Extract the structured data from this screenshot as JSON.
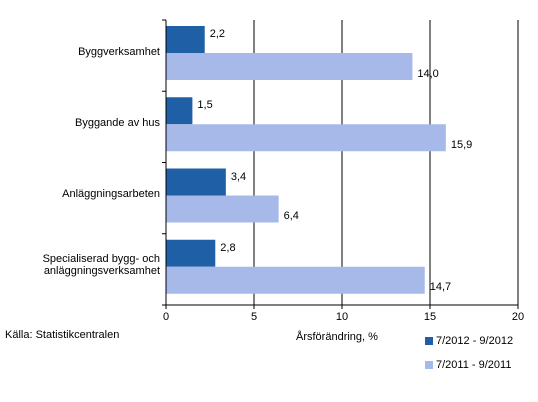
{
  "chart_data": {
    "type": "bar",
    "orientation": "horizontal",
    "categories": [
      "Byggverksamhet",
      "Byggande av hus",
      "Anläggningsarbeten",
      "Specialiserad bygg- och\nanläggningsverksamhet"
    ],
    "series": [
      {
        "name": "7/2012 - 9/2012",
        "values": [
          2.2,
          1.5,
          3.4,
          2.8
        ],
        "labels": [
          "2,2",
          "1,5",
          "3,4",
          "2,8"
        ],
        "color": "#1f5fa6"
      },
      {
        "name": "7/2011 - 9/2011",
        "values": [
          14.0,
          15.9,
          6.4,
          14.7
        ],
        "labels": [
          "14,0",
          "15,9",
          "6,4",
          "14,7"
        ],
        "color": "#a6b9e8"
      }
    ],
    "xlabel": "Årsförändring, %",
    "xlim": [
      0,
      20
    ],
    "xticks": [
      "0",
      "5",
      "10",
      "15",
      "20"
    ],
    "grid": true,
    "legend": "bottom-right"
  },
  "source": "Källa: Statistikcentralen"
}
